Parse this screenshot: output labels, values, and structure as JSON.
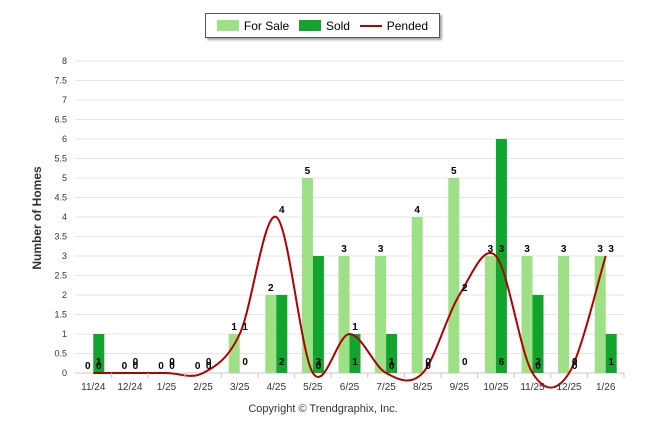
{
  "chart_data": {
    "type": "bar",
    "ylabel": "Number of Homes",
    "ylim": [
      0,
      8
    ],
    "yticks": [
      "0",
      "0.5",
      "1",
      "1.5",
      "2",
      "2.5",
      "3",
      "3.5",
      "4",
      "4.5",
      "5",
      "5.5",
      "6",
      "6.5",
      "7",
      "7.5",
      "8"
    ],
    "categories": [
      "11/24",
      "12/24",
      "1/25",
      "2/25",
      "3/25",
      "4/25",
      "5/25",
      "6/25",
      "7/25",
      "8/25",
      "9/25",
      "10/25",
      "11/25",
      "12/25",
      "1/26"
    ],
    "legend_position": "top-center",
    "series": [
      {
        "name": "For Sale",
        "kind": "bar",
        "color": "#9de085",
        "values": [
          0,
          0,
          0,
          0,
          1,
          2,
          5,
          3,
          3,
          4,
          5,
          3,
          3,
          3,
          3
        ]
      },
      {
        "name": "Sold",
        "kind": "bar",
        "color": "#11a52d",
        "values": [
          1,
          0,
          0,
          0,
          0,
          2,
          3,
          1,
          1,
          0,
          0,
          6,
          2,
          0,
          1
        ]
      },
      {
        "name": "Pended",
        "kind": "line",
        "color": "#b20000",
        "values": [
          0,
          0,
          0,
          0,
          1,
          4,
          0,
          1,
          0,
          0,
          2,
          3,
          0,
          0,
          3
        ]
      }
    ]
  },
  "footer": {
    "copyright": "Copyright © Trendgraphix, Inc."
  }
}
